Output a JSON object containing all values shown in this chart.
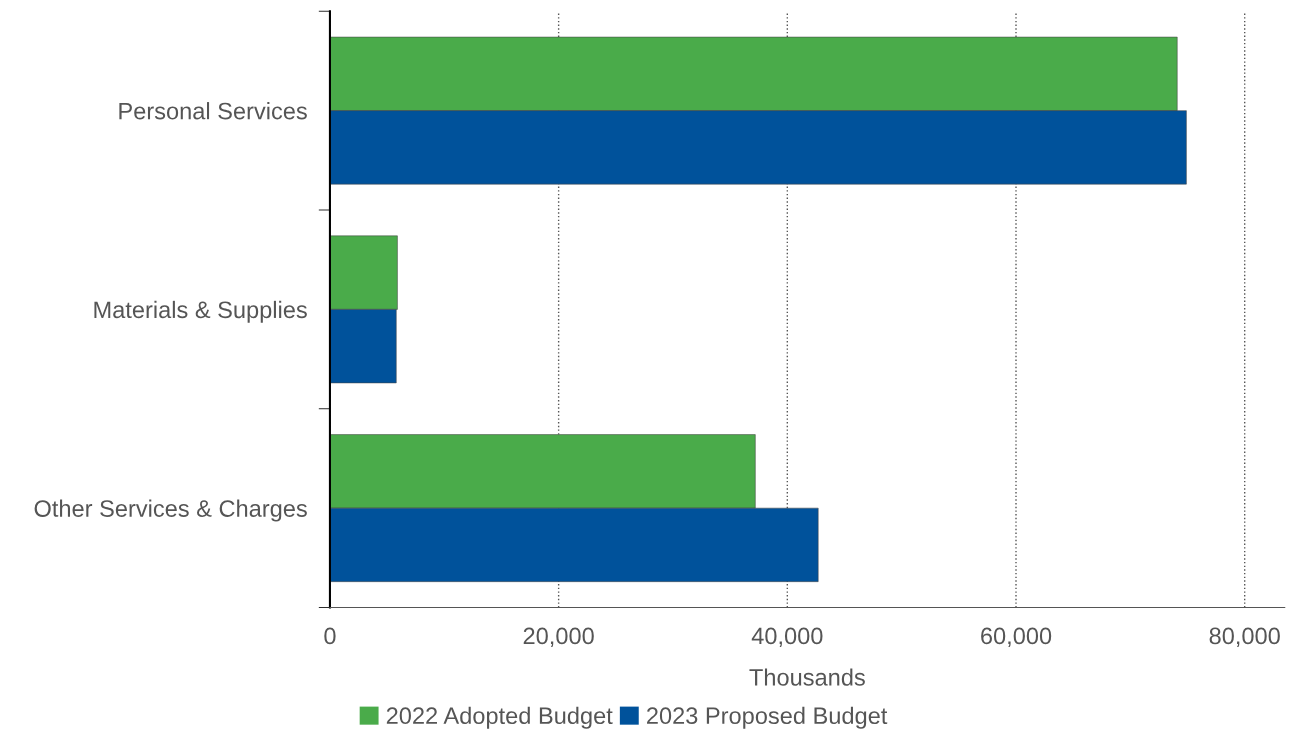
{
  "chart_data": {
    "type": "bar",
    "orientation": "horizontal",
    "xlabel": "Thousands",
    "categories": [
      "Personal Services",
      "Materials & Supplies",
      "Other Services & Charges"
    ],
    "series": [
      {
        "name": "2022 Adopted Budget",
        "color": "#4aab4a",
        "values": [
          74100,
          5900,
          37200
        ]
      },
      {
        "name": "2023 Proposed Budget",
        "color": "#00529b",
        "values": [
          74900,
          5800,
          42700
        ]
      }
    ],
    "xlim": [
      0,
      83500
    ],
    "xticks": [
      {
        "value": 0,
        "label": "0"
      },
      {
        "value": 20000,
        "label": "20,000"
      },
      {
        "value": 40000,
        "label": "40,000"
      },
      {
        "value": 60000,
        "label": "60,000"
      },
      {
        "value": 80000,
        "label": "80,000"
      }
    ],
    "grid": "x",
    "legend": "bottom"
  }
}
